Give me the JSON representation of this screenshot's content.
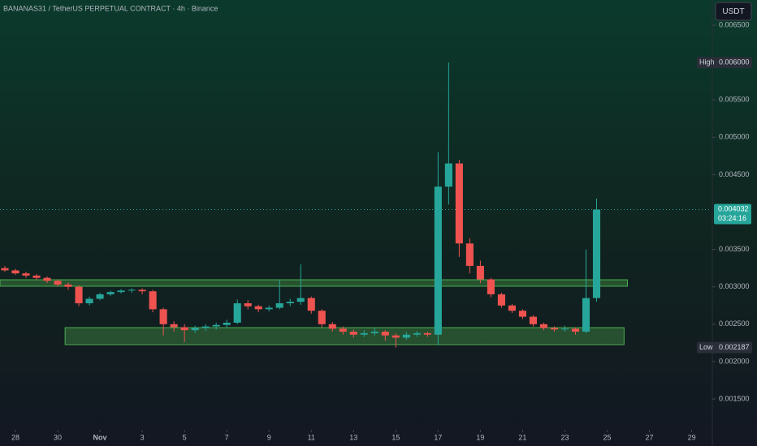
{
  "chart_data": {
    "type": "candlestick",
    "title": "BANANAS31 / TetherUS PERPETUAL CONTRACT · 4h · Binance",
    "currency": "USDT",
    "up_color": "#26a69a",
    "down_color": "#ef5350",
    "xlim": [
      -0.73,
      32.9
    ],
    "ylim": [
      0.001088,
      0.006836
    ],
    "xticks": [
      {
        "value": 0,
        "label": "28"
      },
      {
        "value": 2,
        "label": "30"
      },
      {
        "value": 4,
        "label": "Nov"
      },
      {
        "value": 6,
        "label": "3"
      },
      {
        "value": 8,
        "label": "5"
      },
      {
        "value": 10,
        "label": "7"
      },
      {
        "value": 12,
        "label": "9"
      },
      {
        "value": 14,
        "label": "11"
      },
      {
        "value": 16,
        "label": "13"
      },
      {
        "value": 18,
        "label": "15"
      },
      {
        "value": 20,
        "label": "17"
      },
      {
        "value": 22,
        "label": "19"
      },
      {
        "value": 24,
        "label": "21"
      },
      {
        "value": 26,
        "label": "23"
      },
      {
        "value": 28,
        "label": "25"
      },
      {
        "value": 30,
        "label": "27"
      },
      {
        "value": 32,
        "label": "29"
      }
    ],
    "yticks": [
      {
        "value": 0.0065,
        "label": "0.006500"
      },
      {
        "value": 0.0055,
        "label": "0.005500"
      },
      {
        "value": 0.005,
        "label": "0.005000"
      },
      {
        "value": 0.0045,
        "label": "0.004500"
      },
      {
        "value": 0.0035,
        "label": "0.003500"
      },
      {
        "value": 0.003,
        "label": "0.003000"
      },
      {
        "value": 0.0025,
        "label": "0.002500"
      },
      {
        "value": 0.002,
        "label": "0.002000"
      },
      {
        "value": 0.0015,
        "label": "0.001500"
      }
    ],
    "high_marker": {
      "name": "High",
      "value": 0.006,
      "label": "0.006000"
    },
    "low_marker": {
      "name": "Low",
      "value": 0.002187,
      "label": "0.002187"
    },
    "last_price": 0.004032,
    "countdown": "03:24:16",
    "zones": [
      {
        "x": [
          -0.73,
          28.96
        ],
        "y": [
          0.003008,
          0.003094
        ]
      },
      {
        "x": [
          2.35,
          28.8
        ],
        "y": [
          0.002227,
          0.002454
        ]
      }
    ],
    "x": [
      -0.5,
      0,
      0.5,
      1,
      1.5,
      2,
      2.5,
      3,
      3.5,
      4,
      4.5,
      5,
      5.5,
      6,
      6.5,
      7,
      7.5,
      8,
      8.5,
      9,
      9.5,
      10,
      10.5,
      11,
      11.5,
      12,
      12.5,
      13,
      13.5,
      14,
      14.5,
      15,
      15.5,
      16,
      16.5,
      17,
      17.5,
      18,
      18.5,
      19,
      19.5,
      20,
      20.5,
      21,
      21.5,
      22,
      22.5,
      23,
      23.5,
      24,
      24.5,
      25,
      25.5,
      26,
      26.5,
      27,
      27.5
    ],
    "candles": [
      [
        0.00325,
        0.00328,
        0.0032,
        0.00322
      ],
      [
        0.00322,
        0.00324,
        0.00316,
        0.00318
      ],
      [
        0.00318,
        0.0032,
        0.00312,
        0.00315
      ],
      [
        0.00315,
        0.00317,
        0.00309,
        0.00312
      ],
      [
        0.00312,
        0.00314,
        0.00305,
        0.00308
      ],
      [
        0.00308,
        0.0031,
        0.003,
        0.00303
      ],
      [
        0.00303,
        0.00306,
        0.00296,
        0.003
      ],
      [
        0.003,
        0.00302,
        0.00274,
        0.00278
      ],
      [
        0.00278,
        0.00287,
        0.00275,
        0.00284
      ],
      [
        0.00284,
        0.00292,
        0.00282,
        0.0029
      ],
      [
        0.0029,
        0.00295,
        0.00288,
        0.00293
      ],
      [
        0.00293,
        0.00297,
        0.00291,
        0.00295
      ],
      [
        0.00295,
        0.00298,
        0.00292,
        0.00296
      ],
      [
        0.00296,
        0.00298,
        0.0029,
        0.00294
      ],
      [
        0.00294,
        0.00296,
        0.00266,
        0.0027
      ],
      [
        0.0027,
        0.00272,
        0.00235,
        0.0025
      ],
      [
        0.0025,
        0.00254,
        0.0024,
        0.00246
      ],
      [
        0.00246,
        0.0025,
        0.00226,
        0.00242
      ],
      [
        0.00242,
        0.00248,
        0.00238,
        0.00245
      ],
      [
        0.00245,
        0.0025,
        0.00241,
        0.00247
      ],
      [
        0.00247,
        0.00252,
        0.00243,
        0.00249
      ],
      [
        0.00249,
        0.00256,
        0.00245,
        0.00252
      ],
      [
        0.00252,
        0.00283,
        0.0025,
        0.00278
      ],
      [
        0.00278,
        0.00282,
        0.0027,
        0.00274
      ],
      [
        0.00274,
        0.00276,
        0.00266,
        0.0027
      ],
      [
        0.0027,
        0.00275,
        0.00267,
        0.00272
      ],
      [
        0.00272,
        0.0031,
        0.0027,
        0.00278
      ],
      [
        0.00278,
        0.00284,
        0.00274,
        0.0028
      ],
      [
        0.0028,
        0.0033,
        0.00276,
        0.00285
      ],
      [
        0.00285,
        0.00287,
        0.00264,
        0.00268
      ],
      [
        0.00268,
        0.0027,
        0.00246,
        0.0025
      ],
      [
        0.0025,
        0.00253,
        0.0024,
        0.00244
      ],
      [
        0.00244,
        0.00247,
        0.00236,
        0.0024
      ],
      [
        0.0024,
        0.00243,
        0.00232,
        0.00236
      ],
      [
        0.00236,
        0.00242,
        0.00233,
        0.00238
      ],
      [
        0.00238,
        0.00245,
        0.00235,
        0.0024
      ],
      [
        0.0024,
        0.00242,
        0.00228,
        0.00235
      ],
      [
        0.00235,
        0.00238,
        0.002187,
        0.00232
      ],
      [
        0.00232,
        0.0024,
        0.00229,
        0.00236
      ],
      [
        0.00236,
        0.00241,
        0.00233,
        0.00238
      ],
      [
        0.00238,
        0.0024,
        0.00233,
        0.00236
      ],
      [
        0.00236,
        0.0048,
        0.00222,
        0.00434
      ],
      [
        0.00434,
        0.006,
        0.0041,
        0.00465
      ],
      [
        0.00465,
        0.0047,
        0.0034,
        0.00358
      ],
      [
        0.00358,
        0.00365,
        0.00318,
        0.00328
      ],
      [
        0.00328,
        0.00335,
        0.00305,
        0.0031
      ],
      [
        0.0031,
        0.00312,
        0.00286,
        0.0029
      ],
      [
        0.0029,
        0.00292,
        0.00272,
        0.00275
      ],
      [
        0.00275,
        0.00277,
        0.00265,
        0.00268
      ],
      [
        0.00268,
        0.0027,
        0.00257,
        0.0026
      ],
      [
        0.0026,
        0.00262,
        0.00247,
        0.0025
      ],
      [
        0.0025,
        0.00252,
        0.00242,
        0.00245
      ],
      [
        0.00245,
        0.00247,
        0.0024,
        0.00243
      ],
      [
        0.00243,
        0.00248,
        0.0024,
        0.00244
      ],
      [
        0.00244,
        0.00246,
        0.00236,
        0.0024
      ],
      [
        0.0024,
        0.0035,
        0.00238,
        0.00285
      ],
      [
        0.00285,
        0.00418,
        0.0028,
        0.004032
      ]
    ]
  }
}
